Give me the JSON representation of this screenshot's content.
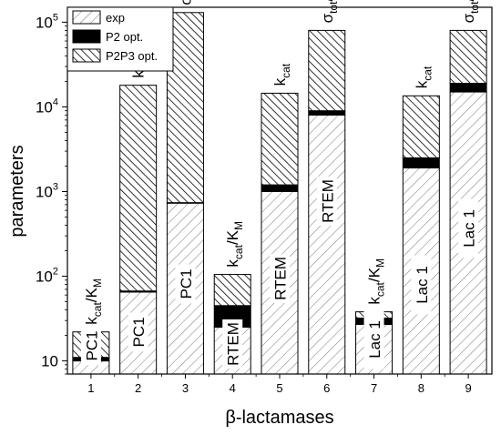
{
  "chart_data": {
    "type": "bar",
    "stacked": true,
    "log_scale_y": true,
    "ylim": [
      7,
      150000
    ],
    "xlabel": "β-lactamases",
    "ylabel": "parameters",
    "categories": [
      "1",
      "2",
      "3",
      "4",
      "5",
      "6",
      "7",
      "8",
      "9"
    ],
    "y_tick_labels": [
      "10",
      "10",
      "10",
      "10",
      "10"
    ],
    "y_tick_exponents": [
      "",
      "2",
      "3",
      "4",
      "5"
    ],
    "legend_position": "top-left",
    "series": [
      {
        "name": "exp",
        "pattern": "light-hatch",
        "values": [
          10,
          65,
          730,
          25,
          1000,
          8000,
          27,
          1900,
          15000
        ]
      },
      {
        "name": "P2 opt.",
        "pattern": "solid-black",
        "values": [
          11,
          67,
          740,
          45,
          1200,
          9000,
          32,
          2500,
          19000
        ]
      },
      {
        "name": "P2P3 opt.",
        "pattern": "dense-hatch",
        "values": [
          22,
          18000,
          130000,
          105,
          14500,
          80000,
          38,
          13500,
          80000
        ]
      }
    ],
    "top_labels": [
      {
        "base": "k",
        "sub": "cat",
        "mid": "/K",
        "sub2": "M"
      },
      {
        "base": "k",
        "sub": "cat",
        "mid": "",
        "sub2": ""
      },
      {
        "base": "σ",
        "sub": "tot",
        "mid": "/k",
        "sub2": "B"
      },
      {
        "base": "k",
        "sub": "cat",
        "mid": "/K",
        "sub2": "M"
      },
      {
        "base": "k",
        "sub": "cat",
        "mid": "",
        "sub2": ""
      },
      {
        "base": "σ",
        "sub": "tot",
        "mid": "/k",
        "sub2": "B"
      },
      {
        "base": "k",
        "sub": "cat",
        "mid": "/K",
        "sub2": "M"
      },
      {
        "base": "k",
        "sub": "cat",
        "mid": "",
        "sub2": ""
      },
      {
        "base": "σ",
        "sub": "tot",
        "mid": "/k",
        "sub2": "B"
      }
    ],
    "bar_labels": [
      "PC1",
      "PC1",
      "PC1",
      "RTEM",
      "RTEM",
      "RTEM",
      "Lac 1",
      "Lac 1",
      "Lac 1"
    ]
  }
}
